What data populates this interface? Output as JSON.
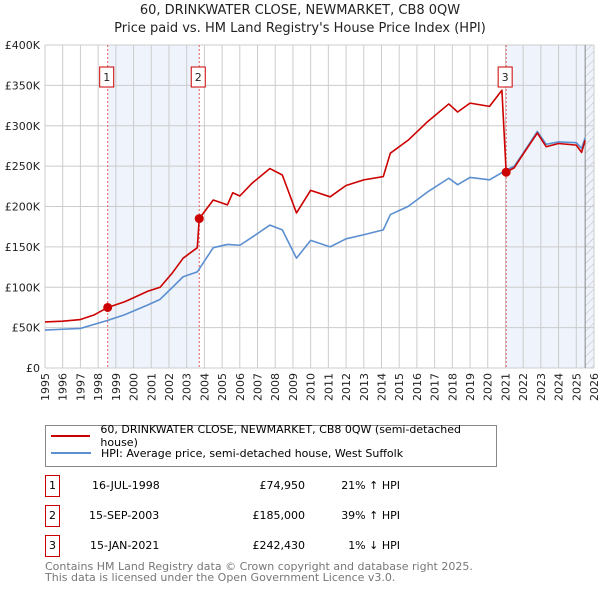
{
  "chart_data": {
    "type": "line",
    "title": "60, DRINKWATER CLOSE, NEWMARKET, CB8 0QW",
    "subtitle": "Price paid vs. HM Land Registry's House Price Index (HPI)",
    "xlim": [
      1995,
      2026
    ],
    "ylim": [
      0,
      400000
    ],
    "y_ticks": [
      0,
      50000,
      100000,
      150000,
      200000,
      250000,
      300000,
      350000,
      400000
    ],
    "y_tick_labels": [
      "£0",
      "£50K",
      "£100K",
      "£150K",
      "£200K",
      "£250K",
      "£300K",
      "£350K",
      "£400K"
    ],
    "x_ticks": [
      "1995",
      "1996",
      "1997",
      "1998",
      "1999",
      "2000",
      "2001",
      "2002",
      "2003",
      "2004",
      "2005",
      "2006",
      "2007",
      "2008",
      "2009",
      "2010",
      "2011",
      "2012",
      "2013",
      "2014",
      "2015",
      "2016",
      "2017",
      "2018",
      "2019",
      "2020",
      "2021",
      "2022",
      "2023",
      "2024",
      "2025",
      "2026"
    ],
    "grid": true,
    "series": [
      {
        "name": "60, DRINKWATER CLOSE, NEWMARKET, CB8 0QW (semi-detached house)",
        "color": "#cc0000",
        "x": [
          1995,
          1996,
          1997,
          1997.8,
          1998.54,
          1999.5,
          2000.8,
          2001.5,
          2002.2,
          2002.8,
          2003.6,
          2003.71,
          2004.5,
          2005.3,
          2005.6,
          2006,
          2006.7,
          2007.7,
          2008.4,
          2009.2,
          2010,
          2011.1,
          2012,
          2013,
          2014.1,
          2014.5,
          2015.5,
          2016.6,
          2017.8,
          2018.3,
          2019,
          2020.1,
          2020.8,
          2021.04,
          2021.5,
          2022,
          2022.8,
          2023.3,
          2024,
          2025,
          2025.3,
          2025.5
        ],
        "y": [
          57000,
          58000,
          60000,
          66000,
          74950,
          82000,
          95000,
          100000,
          118000,
          136000,
          149000,
          185000,
          208000,
          202000,
          217000,
          213000,
          229000,
          247000,
          239000,
          192000,
          220000,
          212000,
          226000,
          233000,
          237000,
          266000,
          282000,
          305000,
          327000,
          317000,
          328000,
          324000,
          344000,
          242430,
          248000,
          265000,
          291000,
          274000,
          278000,
          276000,
          267000,
          282000
        ]
      },
      {
        "name": "HPI: Average price, semi-detached house, West Suffolk",
        "color": "#5b8fd0",
        "x": [
          1995,
          1996,
          1997,
          1998.54,
          1999.5,
          2000.8,
          2001.5,
          2002.2,
          2002.8,
          2003.6,
          2004.5,
          2005.3,
          2006,
          2006.7,
          2007.7,
          2008.4,
          2009.2,
          2010,
          2011.1,
          2012,
          2013,
          2014.1,
          2014.5,
          2015.5,
          2016.6,
          2017.8,
          2018.3,
          2019,
          2020.1,
          2021.04,
          2021.5,
          2022,
          2022.8,
          2023.3,
          2024,
          2025,
          2025.3,
          2025.5
        ],
        "y": [
          47000,
          48000,
          49000,
          59000,
          66000,
          78000,
          85000,
          100000,
          113000,
          119000,
          149000,
          153000,
          152000,
          162000,
          177000,
          171000,
          136000,
          158000,
          150000,
          160000,
          165000,
          171000,
          190000,
          200000,
          218000,
          235000,
          227000,
          236000,
          233000,
          245000,
          250000,
          266000,
          293000,
          277000,
          280000,
          279000,
          272000,
          285000
        ]
      }
    ],
    "sales": [
      {
        "label": "1",
        "x": 1998.54,
        "y": 74950,
        "date": "16-JUL-1998",
        "price": "£74,950",
        "hpi": "21% ↑ HPI"
      },
      {
        "label": "2",
        "x": 2003.71,
        "y": 185000,
        "date": "15-SEP-2003",
        "price": "£185,000",
        "hpi": "39% ↑ HPI"
      },
      {
        "label": "3",
        "x": 2021.04,
        "y": 242430,
        "date": "15-JAN-2021",
        "price": "£242,430",
        "hpi": "1% ↓ HPI"
      }
    ],
    "shaded": [
      [
        1998.54,
        2003.71
      ],
      [
        2021.04,
        2026
      ]
    ],
    "hatched_from": 2025.5
  },
  "legend": {
    "property": "60, DRINKWATER CLOSE, NEWMARKET, CB8 0QW (semi-detached house)",
    "hpi": "HPI: Average price, semi-detached house, West Suffolk"
  },
  "footer": {
    "line1": "Contains HM Land Registry data © Crown copyright and database right 2025.",
    "line2": "This data is licensed under the Open Government Licence v3.0."
  }
}
